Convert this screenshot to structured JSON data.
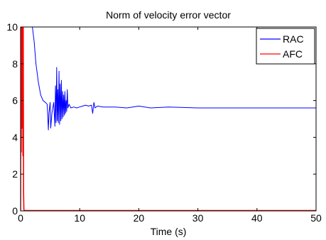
{
  "chart_data": {
    "type": "line",
    "title": "Norm of velocity error vector",
    "xlabel": "Time (s)",
    "ylabel": "",
    "xlim": [
      0,
      50
    ],
    "ylim": [
      0,
      10
    ],
    "xticks": [
      0,
      10,
      20,
      30,
      40,
      50
    ],
    "yticks": [
      0,
      2,
      4,
      6,
      8,
      10
    ],
    "xtick_labels": [
      "0",
      "10",
      "20",
      "30",
      "40",
      "50"
    ],
    "ytick_labels": [
      "0",
      "2",
      "4",
      "6",
      "8",
      "10"
    ],
    "grid": false,
    "legend_placement": "top-right",
    "series": [
      {
        "name": "RAC",
        "color": "#0000ff",
        "x": [
          2.0,
          2.3,
          2.6,
          3.0,
          3.4,
          3.8,
          4.2,
          4.5,
          4.7,
          4.8,
          5.0,
          5.1,
          5.3,
          5.6,
          5.8,
          5.9,
          6.0,
          6.1,
          6.2,
          6.3,
          6.4,
          6.5,
          6.6,
          6.7,
          6.8,
          6.9,
          7.0,
          7.1,
          7.2,
          7.3,
          7.4,
          7.5,
          7.6,
          7.7,
          7.8,
          7.9,
          8.0,
          8.2,
          8.5,
          9.0,
          9.5,
          10.0,
          10.5,
          11.0,
          11.5,
          12.0,
          12.2,
          12.4,
          12.6,
          13.0,
          14.0,
          16.0,
          18.0,
          20.0,
          22.0,
          25.0,
          30.0,
          35.0,
          40.0,
          45.0,
          50.0
        ],
        "y": [
          10.0,
          9.2,
          8.0,
          7.0,
          6.3,
          6.0,
          5.9,
          5.8,
          4.4,
          5.3,
          5.9,
          4.5,
          5.3,
          5.9,
          4.6,
          6.8,
          4.8,
          7.8,
          4.9,
          6.6,
          4.8,
          7.6,
          4.7,
          6.9,
          4.9,
          7.1,
          5.0,
          6.5,
          5.1,
          6.3,
          5.2,
          6.5,
          5.3,
          6.0,
          5.4,
          6.6,
          5.6,
          5.8,
          5.6,
          5.65,
          5.6,
          5.65,
          5.7,
          5.75,
          5.7,
          5.75,
          5.3,
          5.9,
          5.6,
          5.7,
          5.65,
          5.65,
          5.6,
          5.7,
          5.6,
          5.65,
          5.6,
          5.6,
          5.6,
          5.6,
          5.6
        ]
      },
      {
        "name": "AFC",
        "color": "#ff0000",
        "x": [
          0.0,
          0.05,
          0.1,
          0.15,
          0.2,
          0.25,
          0.3,
          0.35,
          0.4,
          0.45,
          0.5,
          0.55,
          0.6,
          1.0,
          5.0,
          10.0,
          20.0,
          30.0,
          40.0,
          50.0
        ],
        "y": [
          0.0,
          10.0,
          3.2,
          10.0,
          4.5,
          10.0,
          5.5,
          10.0,
          3.0,
          10.0,
          1.0,
          0.1,
          0.02,
          0.02,
          0.02,
          0.02,
          0.02,
          0.02,
          0.02,
          0.02
        ]
      }
    ]
  }
}
